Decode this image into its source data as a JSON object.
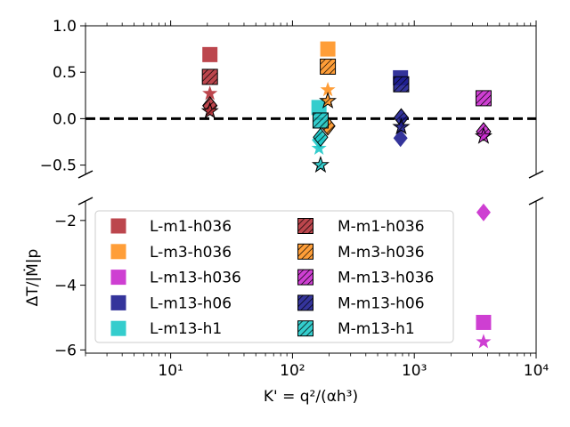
{
  "chart_data": {
    "type": "scatter",
    "xlabel": "K' = q²/(αh³)",
    "ylabel": "ΔT/|Ṁ|p",
    "xscale": "log",
    "xlim": [
      2,
      10000
    ],
    "broken_y_axis": true,
    "panels": [
      {
        "position": "top",
        "ylim": [
          -0.6,
          1.0
        ],
        "yticks": [
          "1.0",
          "0.5",
          "0.0",
          "−0.5"
        ],
        "ytick_values": [
          1.0,
          0.5,
          0.0,
          -0.5
        ],
        "reference_line": 0.0
      },
      {
        "position": "bottom",
        "ylim": [
          -6.1,
          -1.4
        ],
        "yticks": [
          "−2",
          "−4",
          "−6"
        ],
        "ytick_values": [
          -2,
          -4,
          -6
        ]
      }
    ],
    "xticks": [
      "10¹",
      "10²",
      "10³",
      "10⁴"
    ],
    "xtick_values": [
      10,
      100,
      1000,
      10000
    ],
    "legend": {
      "placement": "bottom-left of lower panel",
      "columns": 2
    },
    "series": [
      {
        "name": "L-m1-h036",
        "color": "#b5323a",
        "marker": "square",
        "hatch": false,
        "points": [
          {
            "x": 21,
            "y": 0.69,
            "m": "square"
          },
          {
            "x": 21,
            "y": 0.27,
            "m": "star"
          }
        ]
      },
      {
        "name": "L-m3-h036",
        "color": "#ff9322",
        "marker": "square",
        "hatch": false,
        "points": [
          {
            "x": 195,
            "y": 0.75,
            "m": "square"
          },
          {
            "x": 195,
            "y": 0.31,
            "m": "star"
          }
        ]
      },
      {
        "name": "L-m13-h036",
        "color": "#c92acd",
        "marker": "square",
        "hatch": false,
        "points": [
          {
            "x": 3700,
            "y": -5.15,
            "m": "square"
          },
          {
            "x": 3700,
            "y": -5.75,
            "m": "star"
          },
          {
            "x": 3700,
            "y": -1.75,
            "m": "diamond"
          }
        ]
      },
      {
        "name": "L-m13-h06",
        "color": "#1e1e90",
        "marker": "square",
        "hatch": false,
        "points": [
          {
            "x": 770,
            "y": 0.44,
            "m": "square"
          },
          {
            "x": 770,
            "y": -0.21,
            "m": "diamond"
          }
        ]
      },
      {
        "name": "L-m13-h1",
        "color": "#1ec8c8",
        "marker": "square",
        "hatch": false,
        "points": [
          {
            "x": 165,
            "y": 0.12,
            "m": "square"
          },
          {
            "x": 165,
            "y": -0.32,
            "m": "star"
          },
          {
            "x": 165,
            "y": -0.23,
            "m": "diamond"
          }
        ]
      },
      {
        "name": "M-m1-h036",
        "color": "#b5323a",
        "marker": "square",
        "hatch": true,
        "points": [
          {
            "x": 21,
            "y": 0.45,
            "m": "square"
          },
          {
            "x": 21,
            "y": 0.14,
            "m": "diamond"
          },
          {
            "x": 21,
            "y": 0.08,
            "m": "star"
          }
        ]
      },
      {
        "name": "M-m3-h036",
        "color": "#ff9322",
        "marker": "square",
        "hatch": true,
        "points": [
          {
            "x": 195,
            "y": 0.56,
            "m": "square"
          },
          {
            "x": 195,
            "y": 0.19,
            "m": "star"
          },
          {
            "x": 195,
            "y": -0.08,
            "m": "diamond"
          }
        ]
      },
      {
        "name": "M-m13-h036",
        "color": "#c92acd",
        "marker": "square",
        "hatch": true,
        "points": [
          {
            "x": 3700,
            "y": 0.22,
            "m": "square"
          },
          {
            "x": 3700,
            "y": -0.14,
            "m": "diamond"
          },
          {
            "x": 3700,
            "y": -0.19,
            "m": "star"
          }
        ]
      },
      {
        "name": "M-m13-h06",
        "color": "#1e1e90",
        "marker": "square",
        "hatch": true,
        "points": [
          {
            "x": 780,
            "y": 0.37,
            "m": "square"
          },
          {
            "x": 780,
            "y": 0.01,
            "m": "diamond"
          },
          {
            "x": 780,
            "y": -0.09,
            "m": "star"
          }
        ]
      },
      {
        "name": "M-m13-h1",
        "color": "#1ec8c8",
        "marker": "square",
        "hatch": true,
        "points": [
          {
            "x": 170,
            "y": -0.02,
            "m": "square"
          },
          {
            "x": 170,
            "y": -0.5,
            "m": "star"
          },
          {
            "x": 170,
            "y": -0.2,
            "m": "diamond"
          }
        ]
      }
    ]
  }
}
